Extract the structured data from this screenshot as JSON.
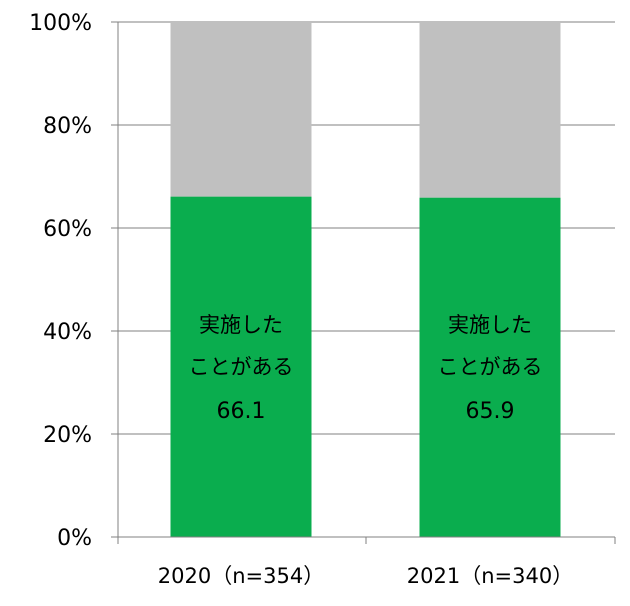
{
  "chart_data": {
    "type": "bar",
    "stacked": true,
    "categories": [
      "2020（n=354）",
      "2021（n=340）"
    ],
    "series": [
      {
        "values": [
          66.1,
          65.9
        ],
        "color": "#0aad4e",
        "segment_label_lines": [
          "実施した",
          "ことがある"
        ],
        "value_labels": [
          "66.1",
          "65.9"
        ]
      },
      {
        "values": [
          33.9,
          34.1
        ],
        "color": "#c0c0c0"
      }
    ],
    "y_ticks": [
      0,
      20,
      40,
      60,
      80,
      100
    ],
    "y_tick_labels": [
      "0%",
      "20%",
      "40%",
      "60%",
      "80%",
      "100%"
    ],
    "ylim": [
      0,
      100
    ],
    "gridlines": true,
    "gridline_color": "#808080",
    "legend": "none"
  }
}
